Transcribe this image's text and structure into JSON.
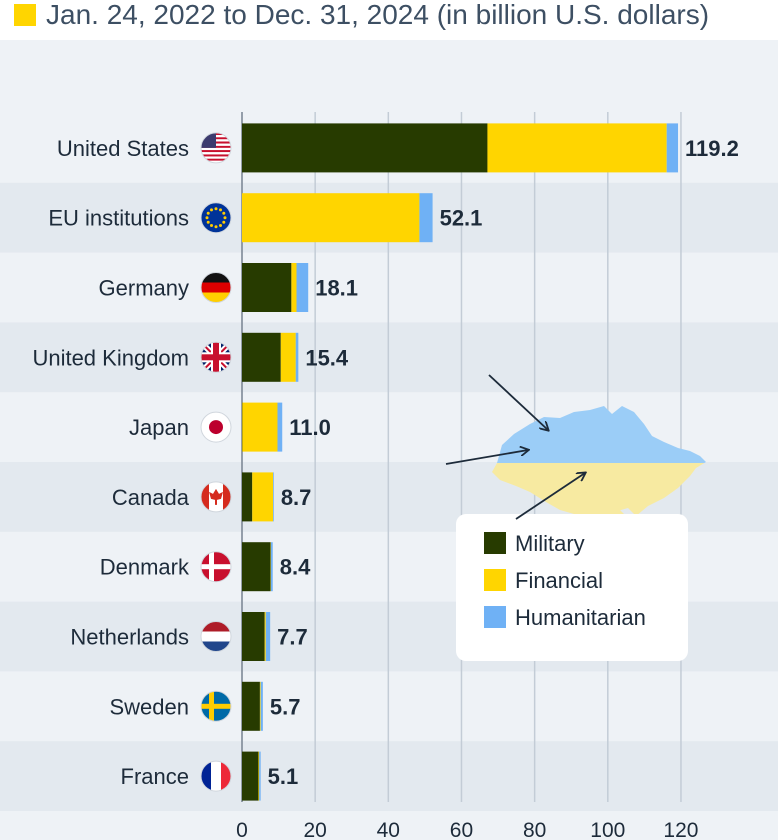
{
  "subtitle": "Jan. 24, 2022 to Dec. 31, 2024 (in billion U.S. dollars)",
  "colors": {
    "military": "#273b00",
    "financial": "#ffd500",
    "humanitarian": "#6fb1f5",
    "map_top": "#9bcdf7",
    "map_bottom": "#f7eaa1",
    "arrow": "#1d2b3a",
    "stripe": "#e3e9ef",
    "background": "#eef2f6"
  },
  "chart_data": {
    "type": "bar",
    "orientation": "horizontal",
    "stacked": true,
    "title": "",
    "subtitle": "Jan. 24, 2022 to Dec. 31, 2024 (in billion U.S. dollars)",
    "categories": [
      "United States",
      "EU institutions",
      "Germany",
      "United Kingdom",
      "Japan",
      "Canada",
      "Denmark",
      "Netherlands",
      "Sweden",
      "France"
    ],
    "flags": [
      "flag-us",
      "flag-eu",
      "flag-de",
      "flag-uk",
      "flag-jp",
      "flag-ca",
      "flag-dk",
      "flag-nl",
      "flag-se",
      "flag-fr"
    ],
    "series": [
      {
        "name": "Military",
        "values": [
          67.1,
          0,
          13.5,
          10.6,
          0.1,
          2.8,
          7.8,
          6.2,
          4.9,
          4.5
        ]
      },
      {
        "name": "Financial",
        "values": [
          49.0,
          48.5,
          1.4,
          4.1,
          9.6,
          5.7,
          0.1,
          0.3,
          0.2,
          0.2
        ]
      },
      {
        "name": "Humanitarian",
        "values": [
          3.1,
          3.6,
          3.2,
          0.7,
          1.3,
          0.2,
          0.5,
          1.2,
          0.6,
          0.4
        ]
      }
    ],
    "totals": [
      "119.2",
      "52.1",
      "18.1",
      "15.4",
      "11.0",
      "8.7",
      "8.4",
      "7.7",
      "5.7",
      "5.1"
    ],
    "xlim": [
      0,
      120
    ],
    "xticks": [
      0,
      20,
      40,
      60,
      80,
      100,
      120
    ],
    "grid": true,
    "legend": "inside, lower-right, over map of Ukraine",
    "legend_entries": [
      "Military",
      "Financial",
      "Humanitarian"
    ]
  }
}
